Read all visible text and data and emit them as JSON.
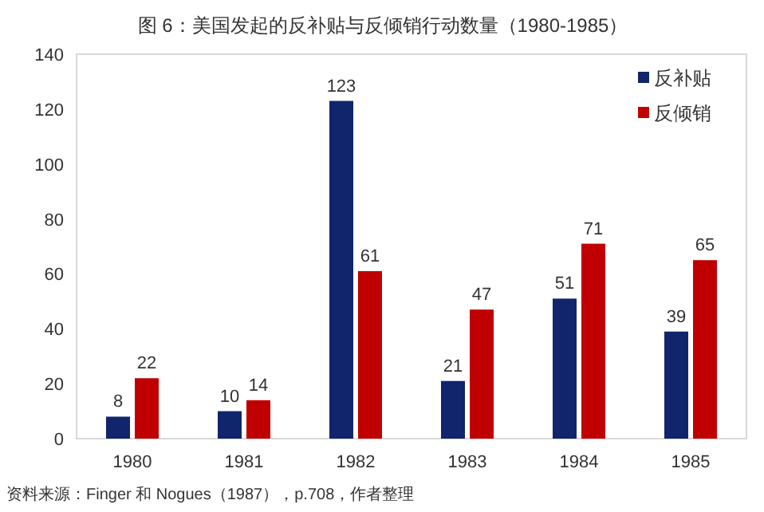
{
  "chart_data": {
    "type": "bar",
    "title": "图 6：美国发起的反补贴与反倾销行动数量（1980-1985）",
    "categories": [
      "1980",
      "1981",
      "1982",
      "1983",
      "1984",
      "1985"
    ],
    "series": [
      {
        "name": "反补贴",
        "color": "#10256b",
        "values": [
          8,
          10,
          123,
          21,
          51,
          39
        ]
      },
      {
        "name": "反倾销",
        "color": "#c00000",
        "values": [
          22,
          14,
          61,
          47,
          71,
          65
        ]
      }
    ],
    "ylim": [
      0,
      140
    ],
    "yticks": [
      0,
      20,
      40,
      60,
      80,
      100,
      120,
      140
    ],
    "data_labels": true,
    "legend": "top right",
    "grid": false,
    "annotations": [
      "资料来源：Finger 和 Nogues（1987），p.708，作者整理"
    ]
  }
}
